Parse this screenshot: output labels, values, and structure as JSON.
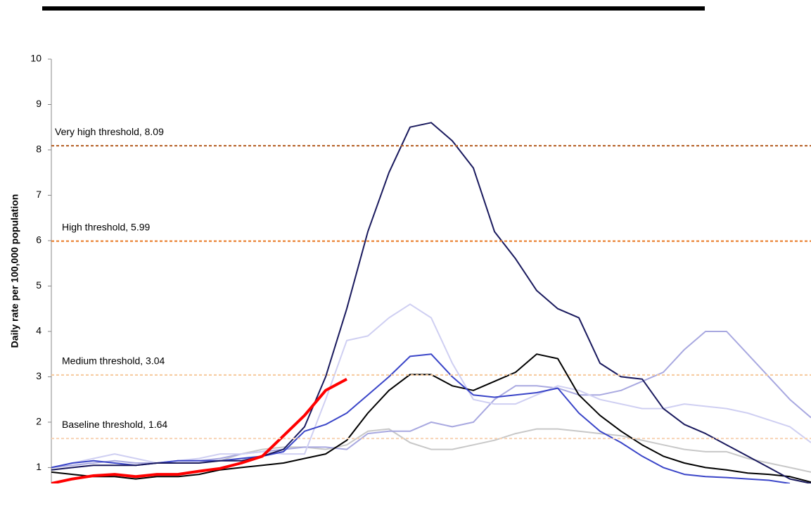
{
  "chart_data": {
    "type": "line",
    "y_label": "Daily rate per 100,000 population",
    "categories": [
      null,
      null,
      null,
      null,
      null,
      null,
      null,
      null,
      null,
      null,
      null,
      null,
      null,
      null,
      null,
      null,
      null,
      null,
      null,
      null,
      null,
      null,
      null,
      null,
      null,
      null,
      null,
      null,
      null,
      null,
      null,
      null,
      null,
      null,
      null,
      null,
      null
    ],
    "ylim": [
      0.65,
      10
    ],
    "yticks": [
      1,
      2,
      3,
      4,
      5,
      6,
      7,
      8,
      9,
      10
    ],
    "thresholds": [
      {
        "label": "Very high threshold, 8.09",
        "value": 8.09,
        "color": "#b35a1f"
      },
      {
        "label": "High threshold, 5.99",
        "value": 5.99,
        "color": "#e8761e"
      },
      {
        "label": "Medium threshold, 3.04",
        "value": 3.04,
        "color": "#f6c99b"
      },
      {
        "label": "Baseline threshold, 1.64",
        "value": 1.64,
        "color": "#f8d3b4"
      }
    ],
    "series": [
      {
        "color": "#c8c8c8",
        "width": 2,
        "values": [
          0.95,
          1.0,
          1.05,
          1.05,
          1.05,
          1.1,
          1.1,
          1.1,
          1.15,
          1.3,
          1.4,
          1.45,
          1.45,
          1.4,
          1.5,
          1.8,
          1.85,
          1.55,
          1.4,
          1.4,
          1.5,
          1.6,
          1.75,
          1.85,
          1.85,
          1.8,
          1.75,
          1.7,
          1.6,
          1.5,
          1.4,
          1.35,
          1.35,
          1.2,
          1.1,
          1.0,
          0.9
        ]
      },
      {
        "color": "#a8a8e0",
        "width": 2,
        "values": [
          1.0,
          1.05,
          1.1,
          1.15,
          1.1,
          1.1,
          1.15,
          1.15,
          1.2,
          1.3,
          1.35,
          1.4,
          1.45,
          1.45,
          1.4,
          1.75,
          1.8,
          1.8,
          2.0,
          1.9,
          2.0,
          2.5,
          2.8,
          2.8,
          2.75,
          2.6,
          2.6,
          2.7,
          2.9,
          3.1,
          3.6,
          4.0,
          4.0,
          3.5,
          3.0,
          2.5,
          2.1
        ]
      },
      {
        "color": "#cfcff2",
        "width": 2,
        "values": [
          1.0,
          1.1,
          1.2,
          1.3,
          1.2,
          1.1,
          1.15,
          1.2,
          1.3,
          1.3,
          1.35,
          1.3,
          1.3,
          2.5,
          3.8,
          3.9,
          4.3,
          4.6,
          4.3,
          3.3,
          2.5,
          2.4,
          2.4,
          2.6,
          2.8,
          2.7,
          2.5,
          2.4,
          2.3,
          2.3,
          2.4,
          2.35,
          2.3,
          2.2,
          2.05,
          1.9,
          1.55
        ]
      },
      {
        "color": "#000000",
        "width": 2,
        "values": [
          0.9,
          0.85,
          0.8,
          0.8,
          0.75,
          0.8,
          0.8,
          0.85,
          0.95,
          1.0,
          1.05,
          1.1,
          1.2,
          1.3,
          1.6,
          2.2,
          2.7,
          3.05,
          3.05,
          2.8,
          2.7,
          2.9,
          3.1,
          3.5,
          3.4,
          2.6,
          2.15,
          1.8,
          1.5,
          1.25,
          1.1,
          1.0,
          0.95,
          0.88,
          0.85,
          0.8,
          0.68
        ]
      },
      {
        "color": "#3a45c8",
        "width": 2,
        "values": [
          1.0,
          1.1,
          1.15,
          1.1,
          1.05,
          1.1,
          1.15,
          1.15,
          1.15,
          1.2,
          1.25,
          1.35,
          1.8,
          1.95,
          2.2,
          2.6,
          3.0,
          3.45,
          3.5,
          3.0,
          2.6,
          2.55,
          2.6,
          2.65,
          2.75,
          2.2,
          1.8,
          1.55,
          1.25,
          1.0,
          0.85,
          0.8,
          0.78,
          0.75,
          0.72,
          0.65,
          null
        ]
      },
      {
        "color": "#1a1a5e",
        "width": 2,
        "values": [
          0.95,
          1.0,
          1.05,
          1.05,
          1.05,
          1.1,
          1.1,
          1.1,
          1.15,
          1.15,
          1.25,
          1.4,
          1.9,
          3.0,
          4.5,
          6.2,
          7.5,
          8.5,
          8.6,
          8.2,
          7.6,
          6.2,
          5.6,
          4.9,
          4.5,
          4.3,
          3.3,
          3.0,
          2.95,
          2.3,
          1.95,
          1.75,
          1.5,
          1.25,
          1.0,
          0.75,
          0.65
        ]
      },
      {
        "color": "#ff0000",
        "width": 4,
        "values": [
          0.65,
          0.75,
          0.82,
          0.85,
          0.8,
          0.85,
          0.85,
          0.92,
          0.98,
          1.1,
          1.25,
          1.7,
          2.15,
          2.7,
          2.95,
          null,
          null,
          null,
          null,
          null,
          null,
          null,
          null,
          null,
          null,
          null,
          null,
          null,
          null,
          null,
          null,
          null,
          null,
          null,
          null,
          null,
          null
        ]
      }
    ]
  }
}
